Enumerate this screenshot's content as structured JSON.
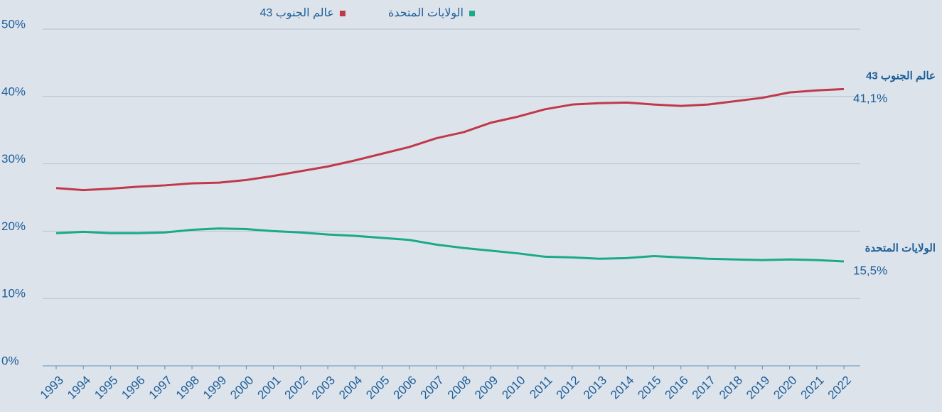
{
  "chart_data": {
    "type": "line",
    "categories": [
      "1993",
      "1994",
      "1995",
      "1996",
      "1997",
      "1998",
      "1999",
      "2000",
      "2001",
      "2002",
      "2003",
      "2004",
      "2005",
      "2006",
      "2007",
      "2008",
      "2009",
      "2010",
      "2011",
      "2012",
      "2013",
      "2014",
      "2015",
      "2016",
      "2017",
      "2018",
      "2019",
      "2020",
      "2021",
      "2022"
    ],
    "series": [
      {
        "name": "الولايات المتحدة",
        "color": "#1aaa8a",
        "values": [
          19.7,
          19.9,
          19.7,
          19.7,
          19.8,
          20.2,
          20.4,
          20.3,
          20.0,
          19.8,
          19.5,
          19.3,
          19.0,
          18.7,
          18.0,
          17.5,
          17.1,
          16.7,
          16.2,
          16.1,
          15.9,
          16.0,
          16.3,
          16.1,
          15.9,
          15.8,
          15.7,
          15.8,
          15.7,
          15.5
        ],
        "value_labels": [
          null,
          null,
          null,
          null,
          null,
          null,
          null,
          null,
          null,
          null,
          null,
          null,
          null,
          null,
          null,
          null,
          null,
          null,
          null,
          null,
          null,
          null,
          null,
          null,
          null,
          null,
          null,
          null,
          null,
          "15,5%"
        ]
      },
      {
        "name": "عالم الجنوب 43",
        "color": "#c0394a",
        "values": [
          26.4,
          26.1,
          26.3,
          26.6,
          26.8,
          27.1,
          27.2,
          27.6,
          28.2,
          28.9,
          29.6,
          30.5,
          31.5,
          32.5,
          33.8,
          34.7,
          36.1,
          37.0,
          38.1,
          38.8,
          39.0,
          39.1,
          38.8,
          38.6,
          38.8,
          39.3,
          39.8,
          40.6,
          40.9,
          41.1
        ],
        "value_labels": [
          null,
          null,
          null,
          null,
          null,
          null,
          null,
          null,
          null,
          null,
          null,
          null,
          null,
          null,
          null,
          null,
          null,
          null,
          null,
          null,
          null,
          null,
          null,
          null,
          null,
          null,
          null,
          null,
          null,
          "41,1%"
        ]
      }
    ],
    "ylim": [
      0,
      50
    ],
    "yticks": [
      {
        "value": 0,
        "label": "0%"
      },
      {
        "value": 10,
        "label": "10%"
      },
      {
        "value": 20,
        "label": "20%"
      },
      {
        "value": 30,
        "label": "30%"
      },
      {
        "value": 40,
        "label": "40%"
      },
      {
        "value": 50,
        "label": "50%"
      }
    ],
    "grid": true,
    "legend": "top"
  }
}
